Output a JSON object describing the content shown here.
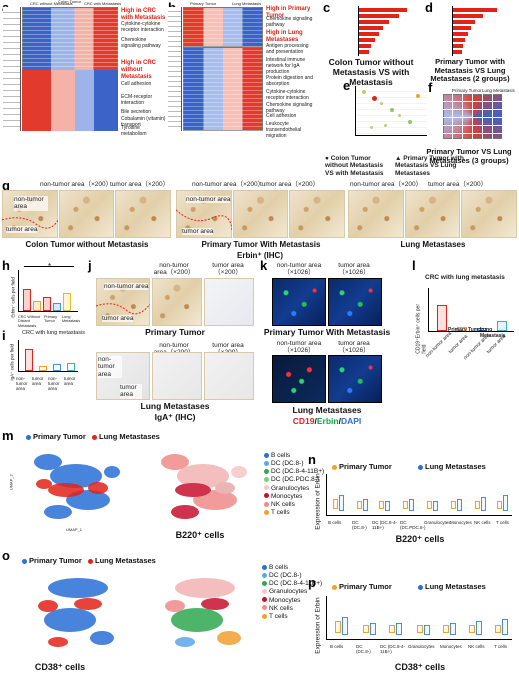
{
  "panels": {
    "a": {
      "label": "a",
      "heat_headers": [
        "CRC without Metastasis",
        "Colon Tumor",
        "CRC with Metastasis"
      ],
      "title_red": "High in CRC with Metastasis",
      "pathways_top": [
        "Cytokine-cytokine receptor interaction",
        "Chemokine signaling pathway"
      ],
      "title_red2": "High in CRC without Metastasis",
      "pathways_bottom": [
        "Cell adhesion",
        "ECM-receptor interaction",
        "Bile secretion",
        "Cobalamin (vitamin) transport",
        "Tyrosine metabolism"
      ]
    },
    "b": {
      "label": "b",
      "heat_headers": [
        "Primary Tumor",
        "Lung Metastasis"
      ],
      "title_red": "High in Primary Tumor",
      "pathways_top": [
        "Chemokine signaling pathway"
      ],
      "title_red2": "High in Lung Metastases",
      "pathways_bottom": [
        "Antigen processing and presentation",
        "Intestinal immune network for IgA production",
        "Protein digestion and absorption",
        "Cytokine-cytokine receptor interaction",
        "Chemokine signaling pathway",
        "Cell adhesion",
        "Leukocyte transendothelial migration"
      ]
    },
    "c": {
      "label": "c",
      "caption": "Colon Tumor without Metastasis VS with Metastasis"
    },
    "d": {
      "label": "d",
      "caption": "Primary Tumor with Metastasis VS Lung Metastases (2 groups)"
    },
    "e": {
      "label": "e",
      "legend_circle": "Colon Tumor without Metastasis VS with Metastasis",
      "legend_triangle": "Primary Tumor with Metastasis VS Lung Metastases"
    },
    "f": {
      "label": "f",
      "headers": [
        "Primary Tumor",
        "Lung Metastasis"
      ],
      "caption": "Primary Tumor VS Lung Metastases (3 groups)"
    },
    "g": {
      "label": "g",
      "magnifications": [
        "non-tumor area（×200）",
        "tumor area（×200）",
        "non-tumor area（×200）",
        "tumor area（×200）",
        "non-tumor area（×200）",
        "tumor area（×200）"
      ],
      "area_labels": [
        "non-tumor area",
        "tumor area",
        "non-tumor area",
        "tumor area"
      ],
      "groups": [
        "Colon Tumor without Metastasis",
        "Primary Tumor With Metastasis",
        "Lung Metastases"
      ],
      "stain": "Erbin⁺ (IHC)"
    },
    "h": {
      "label": "h",
      "ylabel": "Erbin⁺ cells per field",
      "groups": [
        "CRC Without Distant Metastasis",
        "Primary Tumor",
        "Lung Metastasis"
      ],
      "star": "*"
    },
    "i": {
      "label": "i",
      "title": "CRC with lung metastasis",
      "ylabel": "IgA⁺ cells per field",
      "categories": [
        "non-tumor area",
        "tumor area",
        "non-tumor area",
        "tumor area"
      ]
    },
    "j": {
      "label": "j",
      "headers": [
        "non-tumor area（×200）",
        "tumor area（×200）"
      ],
      "area1": "non-tumor area",
      "area2": "tumor area",
      "row1": "Primary Tumor",
      "row2": "Lung Metastases",
      "stain": "IgA⁺ (IHC)",
      "area3": "non-tumor area",
      "area4": "tumor area"
    },
    "k": {
      "label": "k",
      "headers": [
        "non-tumor area（×1026）",
        "tumor area（×1026）"
      ],
      "row1": "Primary Tumor With Metastasis",
      "row2": "Lung Metastases",
      "stain_cd19": "CD19",
      "stain_erbin": "Erbin",
      "stain_dapi": "DAPI",
      "sep1": "/",
      "sep2": "/"
    },
    "l": {
      "label": "l",
      "title": "CRC with lung metastasis",
      "ylabel": "CD19⁺Erbin⁺ cells per field",
      "categories": [
        "non-tumor area",
        "tumor area",
        "non-tumor area",
        "tumor area"
      ],
      "groups": [
        "Primary Tumor",
        "Lung Metastasis"
      ]
    },
    "m": {
      "label": "m",
      "legend_primary": "Primary Tumor",
      "legend_lung": "Lung Metastases",
      "cell_types": [
        "B cells",
        "DC (DC.8-)",
        "DC (DC.8-4-11B+)",
        "DC (DC.PDC.8-)",
        "Granulocytes",
        "Monocytes",
        "NK cells",
        "T cells"
      ],
      "caption": "B220⁺ cells",
      "axis_x": "UMAP_1",
      "axis_y": "UMAP_2"
    },
    "n": {
      "label": "n",
      "legend_primary": "Primary Tumor",
      "legend_lung": "Lung Metastases",
      "ylabel": "Expression of Erbin",
      "categories": [
        "B cells",
        "DC (DC.8-)",
        "DC (DC.8-4-11B+)",
        "DC (DC.PDC.8-)",
        "Granulocytes",
        "Monocytes",
        "NK cells",
        "T cells"
      ],
      "caption": "B220⁺ cells"
    },
    "o": {
      "label": "o",
      "legend_primary": "Primary Tumor",
      "legend_lung": "Lung Metastases",
      "cell_types": [
        "B cells",
        "DC (DC.8-)",
        "DC (DC.8-4-11B+)",
        "Granulocytes",
        "Monocytes",
        "NK cells",
        "T cells"
      ],
      "caption": "CD38⁺ cells"
    },
    "p": {
      "label": "p",
      "legend_primary": "Primary Tumor",
      "legend_lung": "Lung Metastases",
      "ylabel": "Expression of Erbin",
      "categories": [
        "B cells",
        "DC (DC.8-)",
        "DC (DC.8-4-11B+)",
        "Granulocytes",
        "Monocytes",
        "NK cells",
        "T cells"
      ],
      "caption": "CD38⁺ cells"
    }
  },
  "colors": {
    "red": "#e2231a",
    "blue": "#2a6fd6",
    "orange": "#f0a030",
    "lung_pink": "#f08a8a"
  }
}
